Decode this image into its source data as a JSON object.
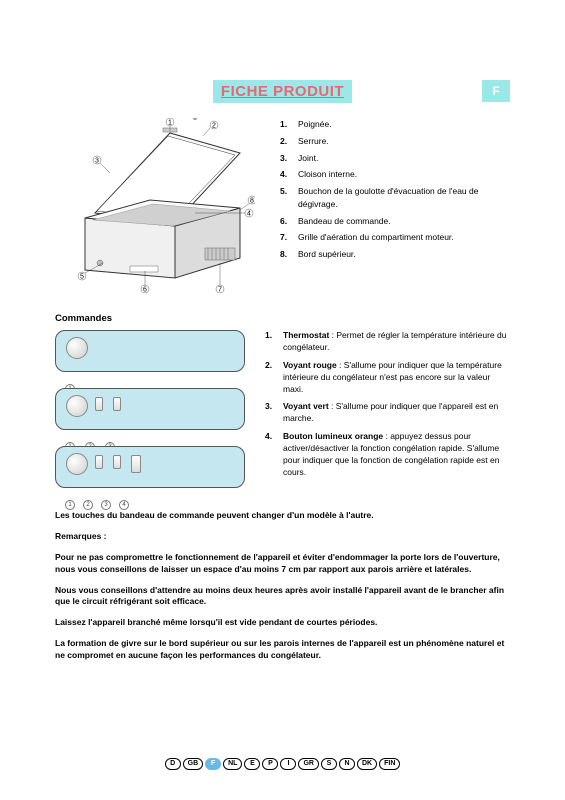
{
  "header": {
    "title": "FICHE PRODUIT",
    "current_lang": "F",
    "title_bg": "#9ce8e8",
    "title_color": "#e86870"
  },
  "parts": [
    {
      "n": "1.",
      "t": "Poignée."
    },
    {
      "n": "2.",
      "t": "Serrure."
    },
    {
      "n": "3.",
      "t": "Joint."
    },
    {
      "n": "4.",
      "t": "Cloison interne."
    },
    {
      "n": "5.",
      "t": "Bouchon de la goulotte d'évacuation de l'eau de dégivrage."
    },
    {
      "n": "6.",
      "t": "Bandeau de commande."
    },
    {
      "n": "7.",
      "t": "Grille d'aération du compartiment moteur."
    },
    {
      "n": "8.",
      "t": "Bord supérieur."
    }
  ],
  "commands_heading": "Commandes",
  "controls": [
    {
      "n": "1.",
      "lbl": "Thermostat",
      "t": " : Permet de régler la température intérieure du congélateur."
    },
    {
      "n": "2.",
      "lbl": "Voyant rouge",
      "t": " : S'allume pour indiquer que la température intérieure du congélateur n'est pas encore sur la valeur maxi."
    },
    {
      "n": "3.",
      "lbl": "Voyant vert",
      "t": " : S'allume pour indiquer que l'appareil est en marche."
    },
    {
      "n": "4.",
      "lbl": "Bouton lumineux orange",
      "t": " : appuyez dessus pour activer/désactiver la fonction congélation rapide. S'allume pour indiquer que la fonction de congélation rapide est en cours."
    }
  ],
  "panel_subnums": {
    "p1": [
      "1"
    ],
    "p2": [
      "1",
      "2",
      "3"
    ],
    "p3": [
      "1",
      "2",
      "3",
      "4"
    ]
  },
  "note_line": "Les touches du bandeau de commande peuvent changer d'un modèle à l'autre.",
  "remarks_heading": "Remarques :",
  "remarks": [
    "Pour ne pas compromettre le fonctionnement de l'appareil et éviter d'endommager la porte lors de l'ouverture, nous vous conseillons de laisser un espace d'au moins 7 cm par rapport aux parois arrière et latérales.",
    "Nous vous conseillons d'attendre au moins deux heures après avoir installé l'appareil avant de le brancher afin que le circuit réfrigérant soit efficace.",
    "Laissez l'appareil branché même lorsqu'il est vide pendant de courtes périodes.",
    "La formation de givre sur le bord supérieur ou sur les parois internes de l'appareil est un phénomène naturel et ne compromet en aucune façon les performances du congélateur."
  ],
  "lang_strip": [
    "D",
    "GB",
    "F",
    "NL",
    "E",
    "P",
    "I",
    "GR",
    "S",
    "N",
    "DK",
    "FIN"
  ],
  "lang_active_index": 2,
  "colors": {
    "panel_bg": "#c5e8f0",
    "page_bg": "#ffffff",
    "text": "#000000"
  },
  "diagram": {
    "type": "technical-illustration",
    "description": "chest freezer with open lid, numbered callouts 1-8",
    "callouts": [
      1,
      2,
      3,
      4,
      5,
      6,
      7,
      8
    ]
  }
}
